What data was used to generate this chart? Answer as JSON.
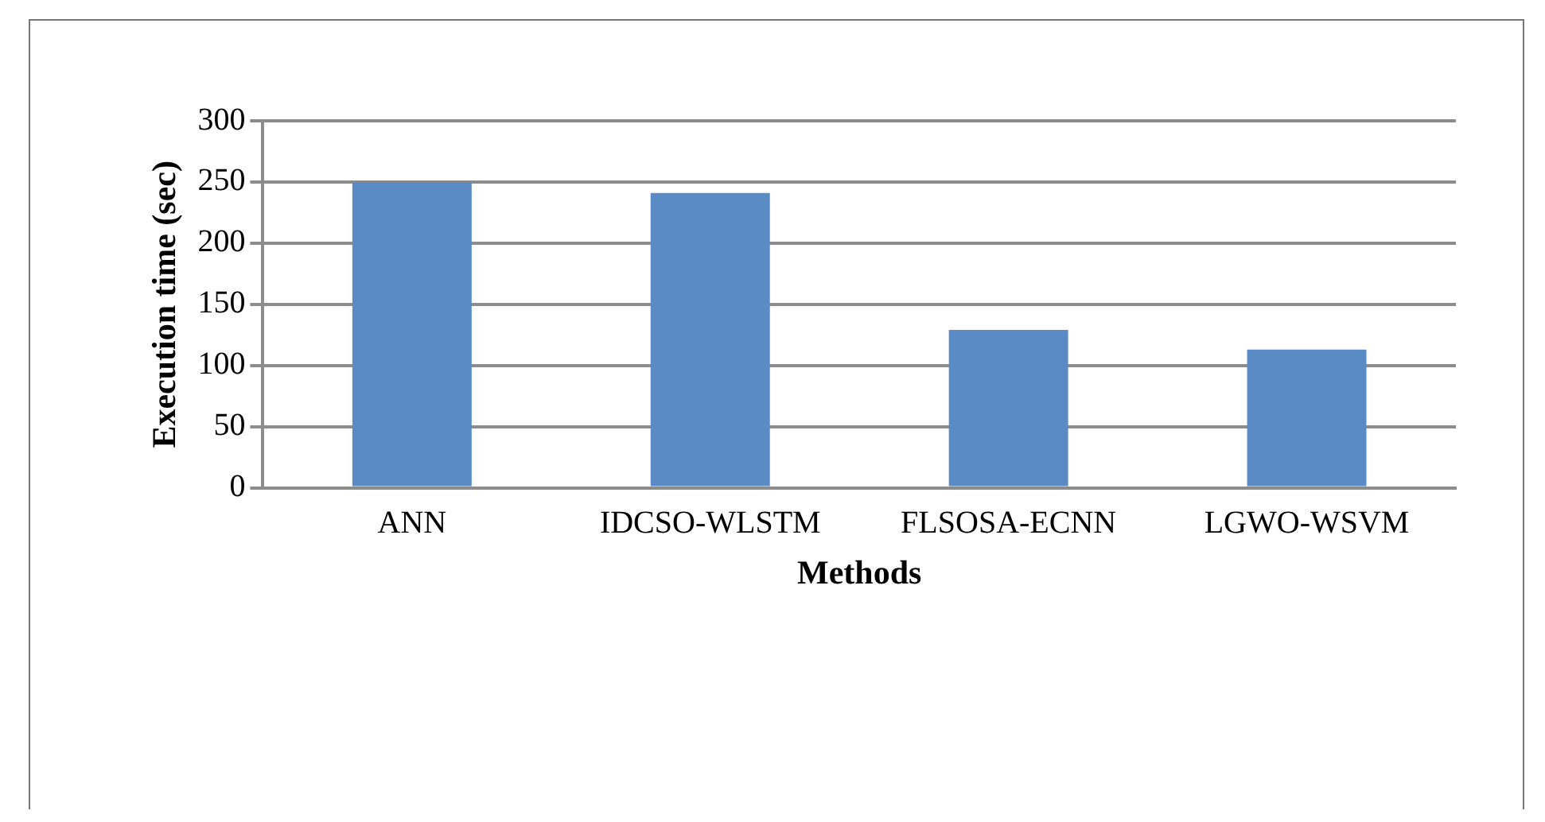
{
  "chart_data": {
    "type": "bar",
    "xlabel": "Methods",
    "ylabel": "Execution time (sec)",
    "categories": [
      "ANN",
      "IDCSO-WLSTM",
      "FLSOSA-ECNN",
      "LGWO-WSVM"
    ],
    "values": [
      250,
      241,
      129,
      113
    ],
    "color": "#5b8bc4",
    "ylim": [
      0,
      300
    ],
    "yticks": [
      0,
      50,
      100,
      150,
      200,
      250,
      300
    ],
    "grid": "y",
    "legend": false
  }
}
